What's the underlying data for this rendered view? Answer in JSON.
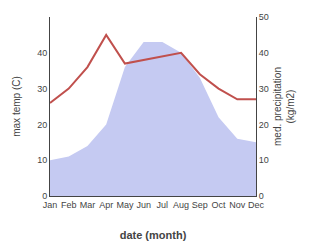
{
  "chart_data": {
    "type": "line",
    "categories": [
      "Jan",
      "Feb",
      "Mar",
      "Apr",
      "May",
      "Jun",
      "Jul",
      "Aug",
      "Sep",
      "Oct",
      "Nov",
      "Dec"
    ],
    "xlabel": "date (month)",
    "ylabel": "max temp (C)",
    "y2label": "med. precipitation\n(kg/m2)",
    "series": [
      {
        "type": "area",
        "color": "#c5caf2",
        "axis": "y2",
        "values": [
          10,
          11,
          14,
          20,
          36,
          43,
          43,
          40,
          33,
          22,
          16,
          15
        ]
      },
      {
        "type": "line",
        "color": "#c0504d",
        "values": [
          26,
          30,
          36,
          45,
          37,
          38,
          39,
          40,
          34,
          30,
          27,
          27
        ]
      }
    ],
    "ylim": [
      0,
      50
    ],
    "yticks": [
      0,
      10,
      20,
      30,
      40
    ],
    "y2lim": [
      0,
      50
    ],
    "y2ticks": [
      0,
      10,
      20,
      30,
      40,
      50
    ],
    "grid": false
  }
}
